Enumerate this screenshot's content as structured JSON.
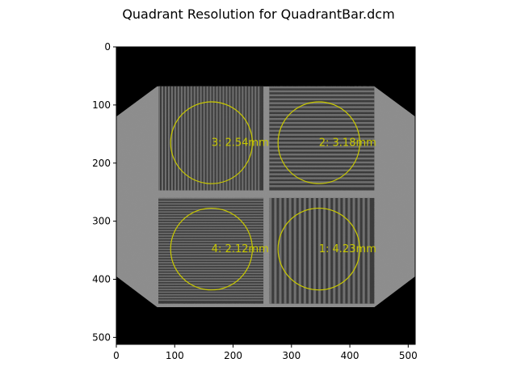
{
  "chart_data": {
    "type": "heatmap",
    "title": "Quadrant Resolution for QuadrantBar.dcm",
    "xlabel": "",
    "ylabel": "",
    "xlim": [
      0,
      512
    ],
    "ylim": [
      512,
      0
    ],
    "x_ticks": [
      0,
      100,
      200,
      300,
      400,
      500
    ],
    "y_ticks": [
      0,
      100,
      200,
      300,
      400,
      500
    ],
    "grid": false,
    "colormap": "gray",
    "roi_color": "#c8c800",
    "rois": [
      {
        "label": "1: 4.23mm",
        "cx": 347,
        "cy": 348,
        "r": 70
      },
      {
        "label": "2: 3.18mm",
        "cx": 347,
        "cy": 165,
        "r": 70
      },
      {
        "label": "3: 2.54mm",
        "cx": 163,
        "cy": 165,
        "r": 70
      },
      {
        "label": "4: 2.12mm",
        "cx": 163,
        "cy": 348,
        "r": 70
      }
    ]
  }
}
